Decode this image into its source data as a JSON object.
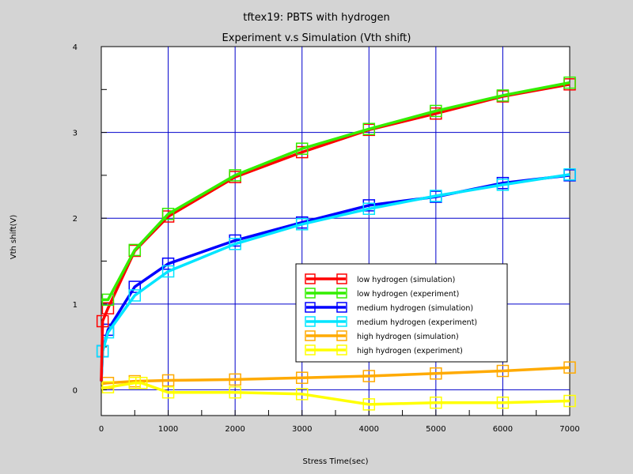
{
  "chart_data": {
    "type": "line",
    "title": "tftex19: PBTS with hydrogen",
    "subtitle": "Experiment v.s Simulation (Vth shift)",
    "xlabel": "Stress Time(sec)",
    "ylabel": "Vth shift(V)",
    "xlim": [
      0,
      7000
    ],
    "ylim": [
      -0.3,
      4
    ],
    "xticks": [
      0,
      1000,
      2000,
      3000,
      4000,
      5000,
      6000,
      7000
    ],
    "yticks": [
      0,
      1,
      2,
      3,
      4
    ],
    "grid": true,
    "legend_position": "center-right",
    "series": [
      {
        "name": "low hydrogen (simulation)",
        "color": "#ff0000",
        "marker": "square",
        "x": [
          0,
          20,
          100,
          500,
          1000,
          2000,
          3000,
          4000,
          5000,
          6000,
          7000
        ],
        "y": [
          0.1,
          0.8,
          0.95,
          1.62,
          2.02,
          2.48,
          2.77,
          3.03,
          3.22,
          3.42,
          3.56
        ]
      },
      {
        "name": "low hydrogen (experiment)",
        "color": "#33ee00",
        "marker": "square",
        "x": [
          0,
          100,
          500,
          1000,
          2000,
          3000,
          4000,
          5000,
          6000,
          7000
        ],
        "y": [
          1.05,
          1.05,
          1.63,
          2.05,
          2.5,
          2.81,
          3.04,
          3.25,
          3.43,
          3.58
        ]
      },
      {
        "name": "medium hydrogen (simulation)",
        "color": "#0000ff",
        "marker": "square",
        "x": [
          0,
          20,
          100,
          500,
          1000,
          2000,
          3000,
          4000,
          5000,
          6000,
          7000
        ],
        "y": [
          0.1,
          0.45,
          0.7,
          1.2,
          1.47,
          1.74,
          1.95,
          2.15,
          2.25,
          2.41,
          2.5
        ]
      },
      {
        "name": "medium hydrogen (experiment)",
        "color": "#00e5ff",
        "marker": "square",
        "x": [
          0,
          20,
          100,
          500,
          1000,
          2000,
          3000,
          4000,
          5000,
          6000,
          7000
        ],
        "y": [
          0.1,
          0.45,
          0.67,
          1.1,
          1.38,
          1.7,
          1.93,
          2.11,
          2.26,
          2.39,
          2.51
        ]
      },
      {
        "name": "high hydrogen (simulation)",
        "color": "#ffaa00",
        "marker": "square",
        "x": [
          0,
          100,
          500,
          1000,
          2000,
          3000,
          4000,
          5000,
          6000,
          7000
        ],
        "y": [
          0.07,
          0.08,
          0.1,
          0.11,
          0.12,
          0.14,
          0.16,
          0.19,
          0.22,
          0.26
        ]
      },
      {
        "name": "high hydrogen (experiment)",
        "color": "#ffff00",
        "marker": "square",
        "x": [
          0,
          100,
          500,
          600,
          1000,
          2000,
          3000,
          4000,
          5000,
          6000,
          7000
        ],
        "y": [
          0.02,
          0.03,
          0.08,
          0.08,
          -0.03,
          -0.03,
          -0.05,
          -0.17,
          -0.15,
          -0.15,
          -0.13
        ]
      }
    ]
  }
}
